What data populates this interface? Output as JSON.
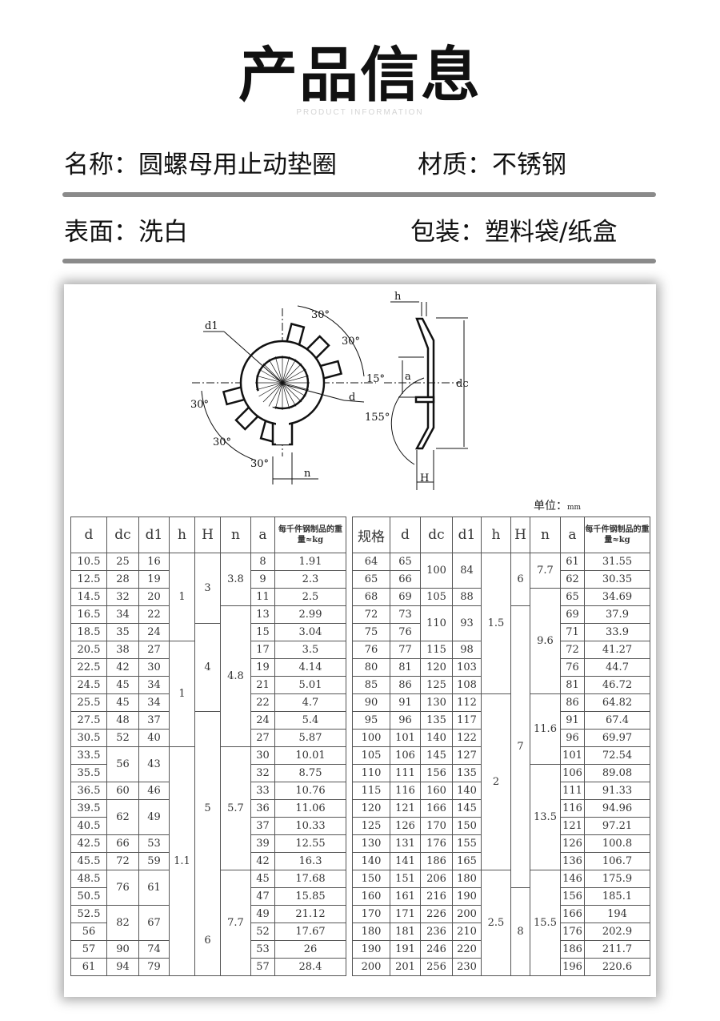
{
  "header": {
    "title": "产品信息",
    "subtitle": "PRODUCT INFORMATION"
  },
  "info": {
    "name": "名称：圆螺母用止动垫圈",
    "material": "材质：不锈钢",
    "surface": "表面：洗白",
    "package": "包装：塑料袋/纸盒"
  },
  "colors": {
    "divider": "#8a8a8a",
    "text": "#111111"
  },
  "diagram": {
    "labels": {
      "d1": "d1",
      "a30_1": "30°",
      "a30_2": "30°",
      "a15": "15°",
      "d": "d",
      "a30_3": "30°",
      "a30_4": "30°",
      "a30_5": "30°",
      "n": "n",
      "h": "h",
      "a": "a",
      "dc": "dc",
      "a155": "155°",
      "H": "H"
    }
  },
  "unit": {
    "label": "单位：",
    "value": "mm"
  },
  "table_left": {
    "headers": [
      "d",
      "dc",
      "d1",
      "h",
      "H",
      "n",
      "a",
      "每千件钢制品的重量≈kg"
    ],
    "columns": {
      "d": [
        "10.5",
        "12.5",
        "14.5",
        "16.5",
        "18.5",
        "20.5",
        "22.5",
        "24.5",
        "25.5",
        "27.5",
        "30.5",
        "33.5",
        "35.5",
        "36.5",
        "39.5",
        "40.5",
        "42.5",
        "45.5",
        "48.5",
        "50.5",
        "52.5",
        "56",
        "57",
        "61"
      ],
      "dc": [
        [
          "25",
          1
        ],
        [
          "28",
          1
        ],
        [
          "32",
          1
        ],
        [
          "34",
          1
        ],
        [
          "35",
          1
        ],
        [
          "38",
          1
        ],
        [
          "42",
          1
        ],
        [
          "45",
          1
        ],
        [
          "45",
          1
        ],
        [
          "48",
          1
        ],
        [
          "52",
          1
        ],
        [
          "56",
          2
        ],
        [
          "60",
          1
        ],
        [
          "62",
          2
        ],
        [
          "66",
          1
        ],
        [
          "72",
          1
        ],
        [
          "76",
          2
        ],
        [
          "82",
          2
        ],
        [
          "90",
          1
        ],
        [
          "94",
          1
        ]
      ],
      "d1": [
        [
          "16",
          1
        ],
        [
          "19",
          1
        ],
        [
          "20",
          1
        ],
        [
          "22",
          1
        ],
        [
          "24",
          1
        ],
        [
          "27",
          1
        ],
        [
          "30",
          1
        ],
        [
          "34",
          1
        ],
        [
          "34",
          1
        ],
        [
          "37",
          1
        ],
        [
          "40",
          1
        ],
        [
          "43",
          2
        ],
        [
          "46",
          1
        ],
        [
          "49",
          2
        ],
        [
          "53",
          1
        ],
        [
          "59",
          1
        ],
        [
          "61",
          2
        ],
        [
          "67",
          2
        ],
        [
          "74",
          1
        ],
        [
          "79",
          1
        ]
      ],
      "h": [
        [
          "1",
          5
        ],
        [
          "1",
          6
        ],
        [
          "1.1",
          13
        ]
      ],
      "H": [
        [
          "3",
          4
        ],
        [
          "4",
          5
        ],
        [
          "5",
          11
        ],
        [
          "6",
          4
        ]
      ],
      "n": [
        [
          "3.8",
          3
        ],
        [
          "4.8",
          8
        ],
        [
          "5.7",
          7
        ],
        [
          "7.7",
          6
        ]
      ],
      "a": [
        "8",
        "9",
        "11",
        "13",
        "15",
        "17",
        "19",
        "21",
        "22",
        "24",
        "27",
        "30",
        "32",
        "33",
        "36",
        "37",
        "39",
        "42",
        "45",
        "47",
        "49",
        "52",
        "53",
        "57"
      ],
      "weight": [
        "1.91",
        "2.3",
        "2.5",
        "2.99",
        "3.04",
        "3.5",
        "4.14",
        "5.01",
        "4.7",
        "5.4",
        "5.87",
        "10.01",
        "8.75",
        "10.76",
        "11.06",
        "10.33",
        "12.55",
        "16.3",
        "17.68",
        "15.85",
        "21.12",
        "17.67",
        "26",
        "28.4"
      ]
    }
  },
  "table_right": {
    "headers": [
      "规格",
      "d",
      "dc",
      "d1",
      "h",
      "H",
      "n",
      "a",
      "每千件钢制品的重量≈kg"
    ],
    "columns": {
      "spec": [
        "64",
        "65",
        "68",
        "72",
        "75",
        "76",
        "80",
        "85",
        "90",
        "95",
        "100",
        "105",
        "110",
        "115",
        "120",
        "125",
        "130",
        "140",
        "150",
        "160",
        "170",
        "180",
        "190",
        "200"
      ],
      "d": [
        "65",
        "66",
        "69",
        "73",
        "76",
        "77",
        "81",
        "86",
        "91",
        "96",
        "101",
        "106",
        "111",
        "116",
        "121",
        "126",
        "131",
        "141",
        "151",
        "161",
        "171",
        "181",
        "191",
        "201"
      ],
      "dc": [
        [
          "100",
          2
        ],
        [
          "105",
          1
        ],
        [
          "110",
          2
        ],
        [
          "115",
          1
        ],
        [
          "120",
          1
        ],
        [
          "125",
          1
        ],
        [
          "130",
          1
        ],
        [
          "135",
          1
        ],
        [
          "140",
          1
        ],
        [
          "145",
          1
        ],
        [
          "156",
          1
        ],
        [
          "160",
          1
        ],
        [
          "166",
          1
        ],
        [
          "170",
          1
        ],
        [
          "176",
          1
        ],
        [
          "186",
          1
        ],
        [
          "206",
          1
        ],
        [
          "216",
          1
        ],
        [
          "226",
          1
        ],
        [
          "236",
          1
        ],
        [
          "246",
          1
        ],
        [
          "256",
          1
        ]
      ],
      "d1": [
        [
          "84",
          2
        ],
        [
          "88",
          1
        ],
        [
          "93",
          2
        ],
        [
          "98",
          1
        ],
        [
          "103",
          1
        ],
        [
          "108",
          1
        ],
        [
          "112",
          1
        ],
        [
          "117",
          1
        ],
        [
          "122",
          1
        ],
        [
          "127",
          1
        ],
        [
          "135",
          1
        ],
        [
          "140",
          1
        ],
        [
          "145",
          1
        ],
        [
          "150",
          1
        ],
        [
          "155",
          1
        ],
        [
          "165",
          1
        ],
        [
          "180",
          1
        ],
        [
          "190",
          1
        ],
        [
          "200",
          1
        ],
        [
          "210",
          1
        ],
        [
          "220",
          1
        ],
        [
          "230",
          1
        ]
      ],
      "h": [
        [
          "1.5",
          8
        ],
        [
          "2",
          10
        ],
        [
          "2.5",
          6
        ]
      ],
      "H": [
        [
          "6",
          3
        ],
        [
          "7",
          16
        ],
        [
          "8",
          5
        ]
      ],
      "n": [
        [
          "7.7",
          2
        ],
        [
          "9.6",
          6
        ],
        [
          "11.6",
          4
        ],
        [
          "13.5",
          6
        ],
        [
          "15.5",
          6
        ]
      ],
      "a": [
        "61",
        "62",
        "65",
        "69",
        "71",
        "72",
        "76",
        "81",
        "86",
        "91",
        "96",
        "101",
        "106",
        "111",
        "116",
        "121",
        "126",
        "136",
        "146",
        "156",
        "166",
        "176",
        "186",
        "196"
      ],
      "weight": [
        "31.55",
        "30.35",
        "34.69",
        "37.9",
        "33.9",
        "41.27",
        "44.7",
        "46.72",
        "64.82",
        "67.4",
        "69.97",
        "72.54",
        "89.08",
        "91.33",
        "94.96",
        "97.21",
        "100.8",
        "106.7",
        "175.9",
        "185.1",
        "194",
        "202.9",
        "211.7",
        "220.6"
      ]
    }
  }
}
